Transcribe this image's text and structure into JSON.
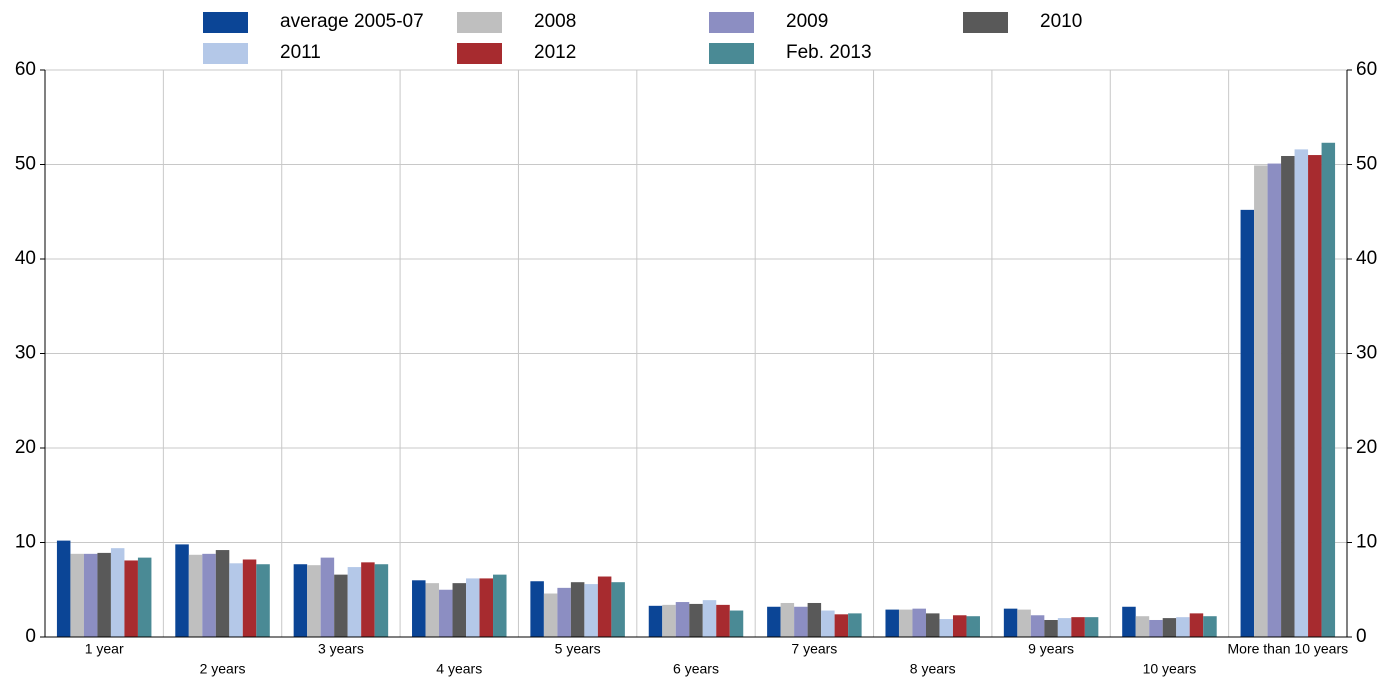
{
  "chart_data": {
    "type": "bar",
    "categories": [
      "1 year",
      "2 years",
      "3 years",
      "4 years",
      "5 years",
      "6 years",
      "7 years",
      "8 years",
      "9 years",
      "10 years",
      "More than 10 years"
    ],
    "series": [
      {
        "name": "average 2005-07",
        "color": "#0b4596",
        "values": [
          10.2,
          9.8,
          7.7,
          6.0,
          5.9,
          3.3,
          3.2,
          2.9,
          3.0,
          3.2,
          45.2
        ]
      },
      {
        "name": "2008",
        "color": "#bfbfbf",
        "values": [
          8.8,
          8.7,
          7.6,
          5.7,
          4.6,
          3.4,
          3.6,
          2.9,
          2.9,
          2.2,
          49.9
        ]
      },
      {
        "name": "2009",
        "color": "#8c8ec2",
        "values": [
          8.8,
          8.8,
          8.4,
          5.0,
          5.2,
          3.7,
          3.2,
          3.0,
          2.3,
          1.8,
          50.1
        ]
      },
      {
        "name": "2010",
        "color": "#595959",
        "values": [
          8.9,
          9.2,
          6.6,
          5.7,
          5.8,
          3.5,
          3.6,
          2.5,
          1.8,
          2.0,
          50.9
        ]
      },
      {
        "name": "2011",
        "color": "#b4c8e8",
        "values": [
          9.4,
          7.8,
          7.4,
          6.2,
          5.6,
          3.9,
          2.8,
          1.9,
          2.0,
          2.1,
          51.6
        ]
      },
      {
        "name": "2012",
        "color": "#a72b2f",
        "values": [
          8.1,
          8.2,
          7.9,
          6.2,
          6.4,
          3.4,
          2.4,
          2.3,
          2.1,
          2.5,
          51.0
        ]
      },
      {
        "name": "Feb. 2013",
        "color": "#4a8a95",
        "values": [
          8.4,
          7.7,
          7.7,
          6.6,
          5.8,
          2.8,
          2.5,
          2.2,
          2.1,
          2.2,
          52.3
        ]
      }
    ],
    "ylim": [
      0,
      60
    ],
    "yticks": [
      0,
      10,
      20,
      30,
      40,
      50,
      60
    ],
    "y2lim": [
      0,
      60
    ],
    "y2ticks": [
      0,
      10,
      20,
      30,
      40,
      50,
      60
    ],
    "grid": true,
    "legend": "top"
  }
}
